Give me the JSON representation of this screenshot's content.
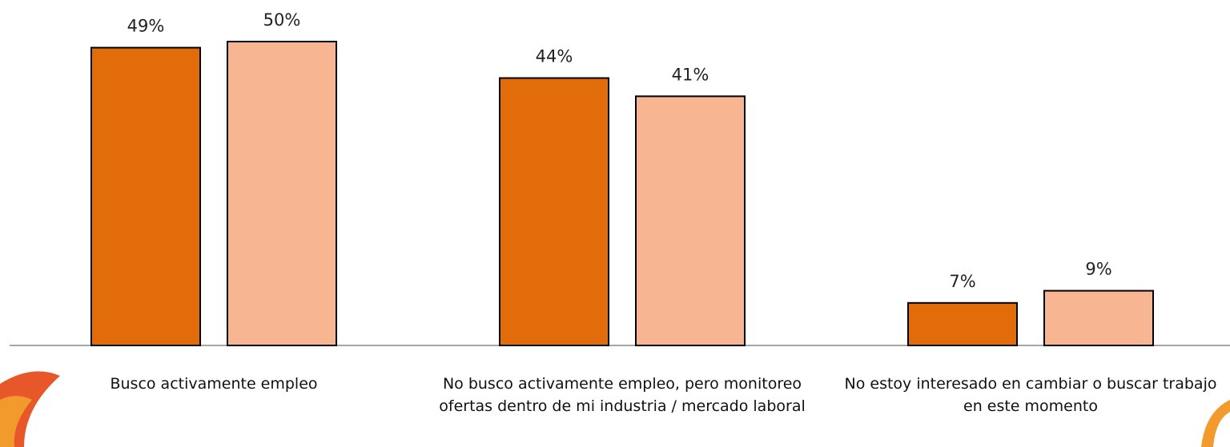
{
  "chart_data": {
    "type": "bar",
    "categories": [
      "Busco activamente empleo",
      "No busco activamente empleo, pero monitoreo ofertas dentro de mi industria / mercado laboral",
      "No estoy interesado en cambiar o buscar trabajo en este momento"
    ],
    "series": [
      {
        "color": "#e36c0a",
        "values": [
          49,
          44,
          7
        ],
        "value_labels": [
          "49%",
          "44%",
          "7%"
        ]
      },
      {
        "color": "#f8b592",
        "values": [
          50,
          41,
          9
        ],
        "value_labels": [
          "50%",
          "41%",
          "9%"
        ]
      }
    ],
    "ylim": [
      0,
      50
    ]
  }
}
